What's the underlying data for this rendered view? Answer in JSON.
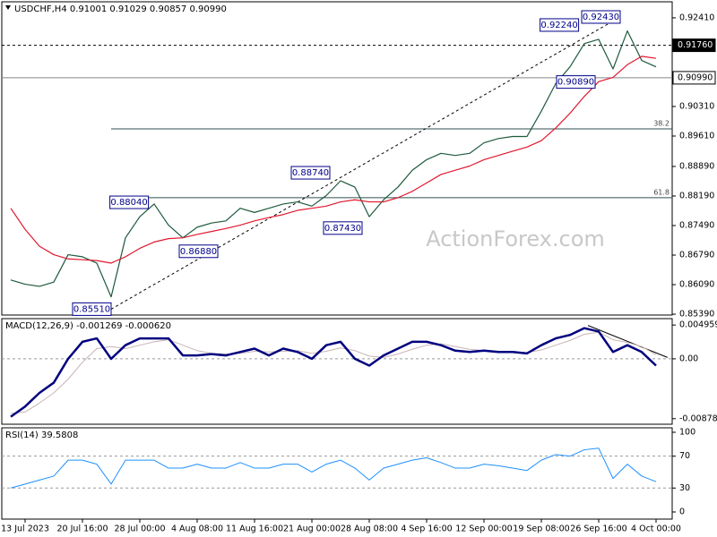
{
  "chart_data": [
    {
      "type": "line",
      "title": "USDCHF,H4  0.91001 0.91029 0.90857 0.90990",
      "ylim": [
        0.8537,
        0.9279
      ],
      "yticks": [
        {
          "value": 0.9241,
          "label": "0.92410"
        },
        {
          "value": 0.9031,
          "label": "0.90310"
        },
        {
          "value": 0.8961,
          "label": "0.89610"
        },
        {
          "value": 0.8889,
          "label": "0.88890"
        },
        {
          "value": 0.8819,
          "label": "0.88190"
        },
        {
          "value": 0.8749,
          "label": "0.87490"
        },
        {
          "value": 0.8679,
          "label": "0.86790"
        },
        {
          "value": 0.8609,
          "label": "0.86090"
        },
        {
          "value": 0.8539,
          "label": "0.85390"
        }
      ],
      "series": [
        {
          "color": "#1e5a3c",
          "width": 1.2,
          "values": [
            0.862,
            0.861,
            0.8605,
            0.8615,
            0.868,
            0.8675,
            0.866,
            0.858,
            0.872,
            0.877,
            0.88,
            0.875,
            0.872,
            0.8745,
            0.8755,
            0.876,
            0.879,
            0.878,
            0.879,
            0.88,
            0.8805,
            0.8795,
            0.882,
            0.8855,
            0.884,
            0.877,
            0.881,
            0.884,
            0.888,
            0.8905,
            0.892,
            0.8915,
            0.892,
            0.8945,
            0.8955,
            0.896,
            0.896,
            0.902,
            0.9085,
            0.9125,
            0.918,
            0.919,
            0.912,
            0.921,
            0.914,
            0.9125
          ]
        },
        {
          "color": "#e0182f",
          "width": 1.2,
          "values": [
            0.879,
            0.874,
            0.87,
            0.868,
            0.867,
            0.8668,
            0.8666,
            0.866,
            0.8675,
            0.8695,
            0.871,
            0.8718,
            0.872,
            0.8728,
            0.8735,
            0.8742,
            0.875,
            0.876,
            0.8768,
            0.8775,
            0.8785,
            0.879,
            0.8795,
            0.8805,
            0.881,
            0.8805,
            0.8805,
            0.8815,
            0.883,
            0.885,
            0.887,
            0.888,
            0.889,
            0.8905,
            0.8915,
            0.8925,
            0.8935,
            0.895,
            0.898,
            0.9015,
            0.9055,
            0.909,
            0.91,
            0.913,
            0.915,
            0.9145
          ]
        }
      ],
      "levels": [
        {
          "value": 0.9176,
          "label": "0.91760",
          "style": "dashed"
        },
        {
          "value": 0.9099,
          "label": "0.90990",
          "style": "solid"
        }
      ],
      "fib_levels": [
        {
          "value": 0.8978,
          "label": "38.2",
          "from": 7
        },
        {
          "value": 0.8815,
          "label": "61.8",
          "from": 7
        }
      ],
      "annotations": [
        {
          "label": "0.85510",
          "value": 0.8551,
          "x": 7,
          "side": "left"
        },
        {
          "label": "0.86880",
          "value": 0.8688,
          "x": 11.75,
          "side": "right"
        },
        {
          "label": "0.88040",
          "value": 0.8804,
          "x": 9.6,
          "side": "left"
        },
        {
          "label": "0.88740",
          "value": 0.8874,
          "x": 22.25,
          "side": "left"
        },
        {
          "label": "0.87430",
          "value": 0.8743,
          "x": 24.5,
          "side": "left"
        },
        {
          "label": "0.90890",
          "value": 0.9089,
          "x": 40.75,
          "side": "left"
        },
        {
          "label": "0.92240",
          "value": 0.9224,
          "x": 39.6,
          "side": "left"
        },
        {
          "label": "0.92430",
          "value": 0.9243,
          "x": 42.5,
          "side": "left"
        }
      ],
      "trendline": {
        "from": [
          7,
          0.8551
        ],
        "to": [
          42.5,
          0.9243
        ],
        "style": "dashed"
      },
      "watermark": "ActionForex.com"
    },
    {
      "type": "line",
      "title": "MACD(12,26,9) -0.001269 -0.000620",
      "ylim": [
        -0.0096,
        0.0059
      ],
      "yticks": [
        0.004959,
        {
          "value": 0,
          "label": "0.00"
        },
        -0.008785
      ],
      "levels": [
        {
          "value": 0,
          "style": "dashed"
        }
      ],
      "series": [
        {
          "color": "#c8b4b4",
          "width": 1,
          "values": [
            -0.008,
            -0.0078,
            -0.0065,
            -0.005,
            -0.003,
            -0.0005,
            0.0015,
            0.0018,
            0.0015,
            0.002,
            0.0025,
            0.0028,
            0.002,
            0.0012,
            0.0008,
            0.0007,
            0.0008,
            0.0011,
            0.001,
            0.0011,
            0.0012,
            0.0008,
            0.0011,
            0.0016,
            0.0012,
            0.0004,
            0.0002,
            0.0007,
            0.0014,
            0.002,
            0.0022,
            0.0018,
            0.0014,
            0.0012,
            0.0011,
            0.001,
            0.0009,
            0.0013,
            0.002,
            0.0027,
            0.0036,
            0.0039,
            0.0028,
            0.0024,
            0.0018,
            0.0006
          ]
        },
        {
          "color": "#000080",
          "width": 2.5,
          "values": [
            -0.0085,
            -0.007,
            -0.005,
            -0.0035,
            0.0,
            0.0025,
            0.003,
            0.0,
            0.002,
            0.003,
            0.003,
            0.003,
            0.0005,
            0.0005,
            0.0007,
            0.0005,
            0.001,
            0.0015,
            0.0005,
            0.0015,
            0.001,
            0.0,
            0.002,
            0.0025,
            0.0,
            -0.001,
            0.0005,
            0.0015,
            0.0025,
            0.0025,
            0.002,
            0.0012,
            0.001,
            0.0012,
            0.001,
            0.001,
            0.0008,
            0.002,
            0.003,
            0.0035,
            0.0045,
            0.004,
            0.001,
            0.002,
            0.001,
            -0.001
          ]
        }
      ],
      "trendline": {
        "from": [
          40.25,
          0.0049
        ],
        "to": [
          45.8,
          0.0002
        ],
        "style": "solid"
      }
    },
    {
      "type": "line",
      "title": "RSI(14) 39.5808",
      "ylim": [
        -9,
        105.6
      ],
      "yticks": [
        100,
        70,
        30,
        0
      ],
      "levels": [
        {
          "value": 70,
          "style": "dashed"
        },
        {
          "value": 30,
          "style": "dashed"
        }
      ],
      "series": [
        {
          "color": "#1e90ff",
          "width": 1,
          "values": [
            30,
            35,
            40,
            45,
            65,
            65,
            60,
            35,
            65,
            65,
            65,
            55,
            55,
            60,
            55,
            55,
            62,
            55,
            55,
            60,
            60,
            50,
            60,
            65,
            55,
            40,
            55,
            60,
            65,
            68,
            62,
            55,
            55,
            60,
            58,
            55,
            52,
            65,
            72,
            70,
            78,
            80,
            42,
            60,
            45,
            38
          ]
        }
      ],
      "categories": [
        null,
        "13 Jul 2023",
        null,
        null,
        null,
        "20 Jul 16:00",
        null,
        null,
        null,
        "28 Jul 00:00",
        null,
        null,
        null,
        "4 Aug 08:00",
        null,
        null,
        null,
        "11 Aug 16:00",
        null,
        null,
        null,
        "21 Aug 00:00",
        null,
        null,
        null,
        "28 Aug 08:00",
        null,
        null,
        null,
        "4 Sep 16:00",
        null,
        null,
        null,
        "12 Sep 00:00",
        null,
        null,
        null,
        "19 Sep 08:00",
        null,
        null,
        null,
        "26 Sep 16:00",
        null,
        null,
        null,
        "4 Oct 00:00"
      ]
    }
  ]
}
